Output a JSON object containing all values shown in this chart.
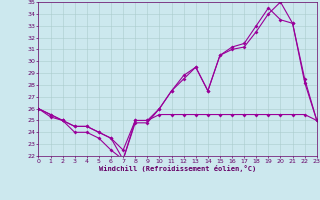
{
  "xlabel": "Windchill (Refroidissement éolien,°C)",
  "background_color": "#cce8ee",
  "grid_color": "#aacccc",
  "line_color": "#990099",
  "x": [
    0,
    1,
    2,
    3,
    4,
    5,
    6,
    7,
    8,
    9,
    10,
    11,
    12,
    13,
    14,
    15,
    16,
    17,
    18,
    19,
    20,
    21,
    22,
    23
  ],
  "temp": [
    26,
    25.5,
    25,
    24.5,
    24.5,
    24,
    23.5,
    22.5,
    25,
    25,
    25.5,
    25.5,
    25.5,
    25.5,
    25.5,
    25.5,
    25.5,
    25.5,
    25.5,
    25.5,
    25.5,
    25.5,
    25.5,
    25
  ],
  "line2": [
    26,
    25.5,
    25,
    24.5,
    24.5,
    24,
    23.5,
    21.7,
    25,
    25,
    26,
    27.5,
    28.8,
    29.5,
    27.5,
    30.5,
    31,
    31.2,
    32.5,
    34,
    35,
    33.2,
    28.5,
    25
  ],
  "line3": [
    26,
    25.3,
    25,
    24,
    24,
    23.5,
    22.5,
    21.7,
    24.8,
    24.8,
    26,
    27.5,
    28.5,
    29.5,
    27.5,
    30.5,
    31.2,
    31.5,
    33,
    34.5,
    33.5,
    33.2,
    28.2,
    25
  ],
  "ylim": [
    22,
    35
  ],
  "xlim": [
    0,
    23
  ],
  "yticks": [
    22,
    23,
    24,
    25,
    26,
    27,
    28,
    29,
    30,
    31,
    32,
    33,
    34,
    35
  ],
  "xticks": [
    0,
    1,
    2,
    3,
    4,
    5,
    6,
    7,
    8,
    9,
    10,
    11,
    12,
    13,
    14,
    15,
    16,
    17,
    18,
    19,
    20,
    21,
    22,
    23
  ],
  "font_color": "#660066",
  "markersize": 2,
  "linewidth": 0.8
}
